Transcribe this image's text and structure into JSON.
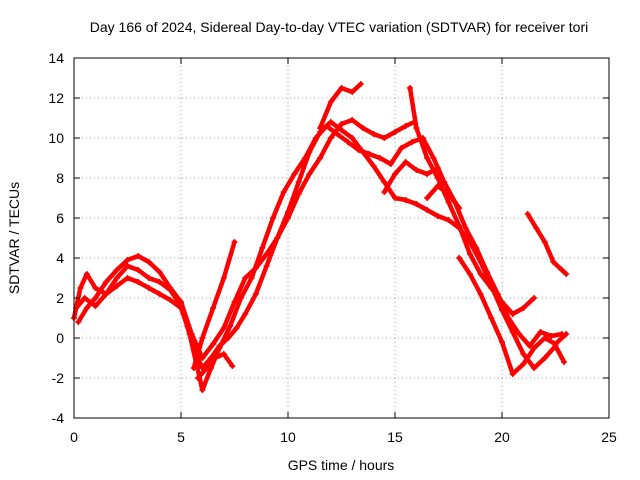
{
  "chart_data": {
    "type": "scatter",
    "title": "Day 166 of 2024, Sidereal Day-to-day VTEC variation (SDTVAR) for receiver tori",
    "xlabel": "GPS time / hours",
    "ylabel": "SDTVAR / TECUs",
    "xlim": [
      0,
      25
    ],
    "ylim": [
      -4,
      14
    ],
    "xticks": [
      0,
      5,
      10,
      15,
      20,
      25
    ],
    "yticks": [
      -4,
      -2,
      0,
      2,
      4,
      6,
      8,
      10,
      12,
      14
    ],
    "grid": true,
    "color": "#ff0000",
    "marker": "plus",
    "series": [
      {
        "x": [
          0.0,
          0.3,
          0.6,
          1.0,
          1.5,
          2.0,
          2.5,
          3.0,
          3.5,
          4.0,
          4.5,
          5.0,
          5.4,
          5.7,
          6.0,
          6.4,
          6.8,
          7.3,
          7.8,
          8.3,
          8.8,
          9.3,
          9.8,
          10.3,
          10.8,
          11.3,
          11.8,
          12.3,
          12.8,
          13.3,
          13.8,
          14.3,
          14.8,
          15.3,
          15.8,
          16.3,
          16.8,
          17.3,
          17.8,
          18.3,
          18.8,
          19.3,
          19.8,
          20.3,
          20.8,
          21.3,
          21.8,
          22.3,
          22.8
        ],
        "y": [
          1.0,
          2.5,
          3.2,
          2.5,
          2.2,
          3.0,
          3.6,
          3.4,
          3.0,
          2.8,
          2.4,
          1.6,
          0.2,
          -1.2,
          -2.6,
          -1.5,
          -0.5,
          0.6,
          2.0,
          3.0,
          4.5,
          6.0,
          7.3,
          8.2,
          9.0,
          10.0,
          10.6,
          10.2,
          9.8,
          9.4,
          9.2,
          9.0,
          8.7,
          9.5,
          9.8,
          10.0,
          9.0,
          7.8,
          6.8,
          5.5,
          4.5,
          3.3,
          2.2,
          1.0,
          0.2,
          -0.4,
          0.3,
          0.1,
          0.2
        ]
      },
      {
        "x": [
          0.1,
          0.5,
          1.0,
          1.5,
          2.0,
          2.5,
          3.0,
          3.5,
          4.0,
          4.5,
          5.0,
          5.3,
          5.6,
          6.0,
          6.4,
          6.8,
          7.2,
          7.6,
          8.0,
          8.5,
          9.0,
          9.5,
          10.0,
          10.5,
          11.0,
          11.5,
          12.0,
          12.5,
          13.0,
          13.5,
          14.0,
          14.5,
          15.0,
          15.5,
          16.0,
          16.5,
          17.0,
          17.5,
          18.0,
          18.5,
          19.0,
          19.5,
          20.0,
          20.5,
          21.0,
          21.5,
          22.0,
          22.5,
          22.9
        ],
        "y": [
          1.5,
          2.0,
          1.6,
          2.2,
          2.6,
          3.0,
          2.8,
          2.5,
          2.2,
          1.9,
          1.5,
          0.6,
          -0.6,
          -1.5,
          -1.0,
          -0.4,
          0.0,
          0.5,
          1.2,
          2.2,
          3.6,
          5.0,
          6.3,
          7.8,
          9.3,
          10.3,
          10.8,
          10.4,
          10.0,
          9.3,
          8.6,
          7.8,
          7.0,
          6.9,
          6.7,
          6.4,
          6.1,
          5.9,
          5.5,
          4.8,
          3.8,
          2.6,
          1.4,
          0.3,
          -0.8,
          -1.5,
          -1.0,
          -0.4,
          -1.2
        ]
      },
      {
        "x": [
          0.2,
          0.6,
          1.0,
          1.5,
          2.0,
          2.5,
          3.0,
          3.5,
          4.0,
          4.5,
          5.0,
          5.5,
          6.0,
          6.5,
          7.0,
          7.5,
          8.0,
          8.5,
          9.0,
          9.5,
          10.0,
          10.5,
          11.0,
          11.5,
          12.0,
          12.5,
          13.0,
          13.5,
          14.0,
          14.5,
          15.0,
          15.5,
          15.9
        ],
        "y": [
          0.8,
          1.5,
          2.0,
          2.8,
          3.4,
          3.9,
          4.1,
          3.8,
          3.3,
          2.5,
          1.8,
          0.2,
          -1.0,
          -0.3,
          0.5,
          1.8,
          3.0,
          3.5,
          4.2,
          5.0,
          6.0,
          7.2,
          8.2,
          9.0,
          10.0,
          10.7,
          10.9,
          10.5,
          10.2,
          10.0,
          10.3,
          10.6,
          10.8
        ]
      },
      {
        "x": [
          5.6,
          6.0,
          6.5,
          7.0,
          7.5
        ],
        "y": [
          -1.5,
          0.0,
          1.5,
          3.0,
          4.8
        ]
      },
      {
        "x": [
          5.8,
          6.2,
          6.6,
          7.0,
          7.4
        ],
        "y": [
          -2.0,
          -1.5,
          -1.0,
          -0.8,
          -1.4
        ]
      },
      {
        "x": [
          11.5,
          12.0,
          12.5,
          13.0,
          13.4
        ],
        "y": [
          10.5,
          11.8,
          12.5,
          12.3,
          12.7
        ]
      },
      {
        "x": [
          15.7,
          16.0,
          16.5,
          17.0,
          17.5,
          18.0,
          18.5,
          19.0,
          19.5,
          20.0,
          20.5,
          21.0,
          21.5
        ],
        "y": [
          12.5,
          10.5,
          9.0,
          8.0,
          6.8,
          5.6,
          4.2,
          3.2,
          2.5,
          1.8,
          1.2,
          1.5,
          2.0
        ]
      },
      {
        "x": [
          21.2,
          21.6,
          22.0,
          22.4,
          22.8,
          23.0
        ],
        "y": [
          6.2,
          5.5,
          4.8,
          3.8,
          3.4,
          3.2
        ]
      },
      {
        "x": [
          18.0,
          18.5,
          19.0,
          19.5,
          20.0,
          20.5,
          21.0,
          21.5,
          22.0,
          22.5,
          23.0
        ],
        "y": [
          4.0,
          3.2,
          2.2,
          1.0,
          -0.2,
          -1.8,
          -1.3,
          -0.5,
          0.0,
          -0.3,
          0.2
        ]
      },
      {
        "x": [
          14.5,
          15.0,
          15.5,
          16.0,
          16.5,
          17.0
        ],
        "y": [
          7.3,
          8.2,
          8.8,
          8.4,
          8.2,
          8.5
        ]
      },
      {
        "x": [
          16.5,
          17.0,
          17.5,
          18.0
        ],
        "y": [
          7.0,
          7.6,
          7.2,
          6.5
        ]
      }
    ]
  }
}
